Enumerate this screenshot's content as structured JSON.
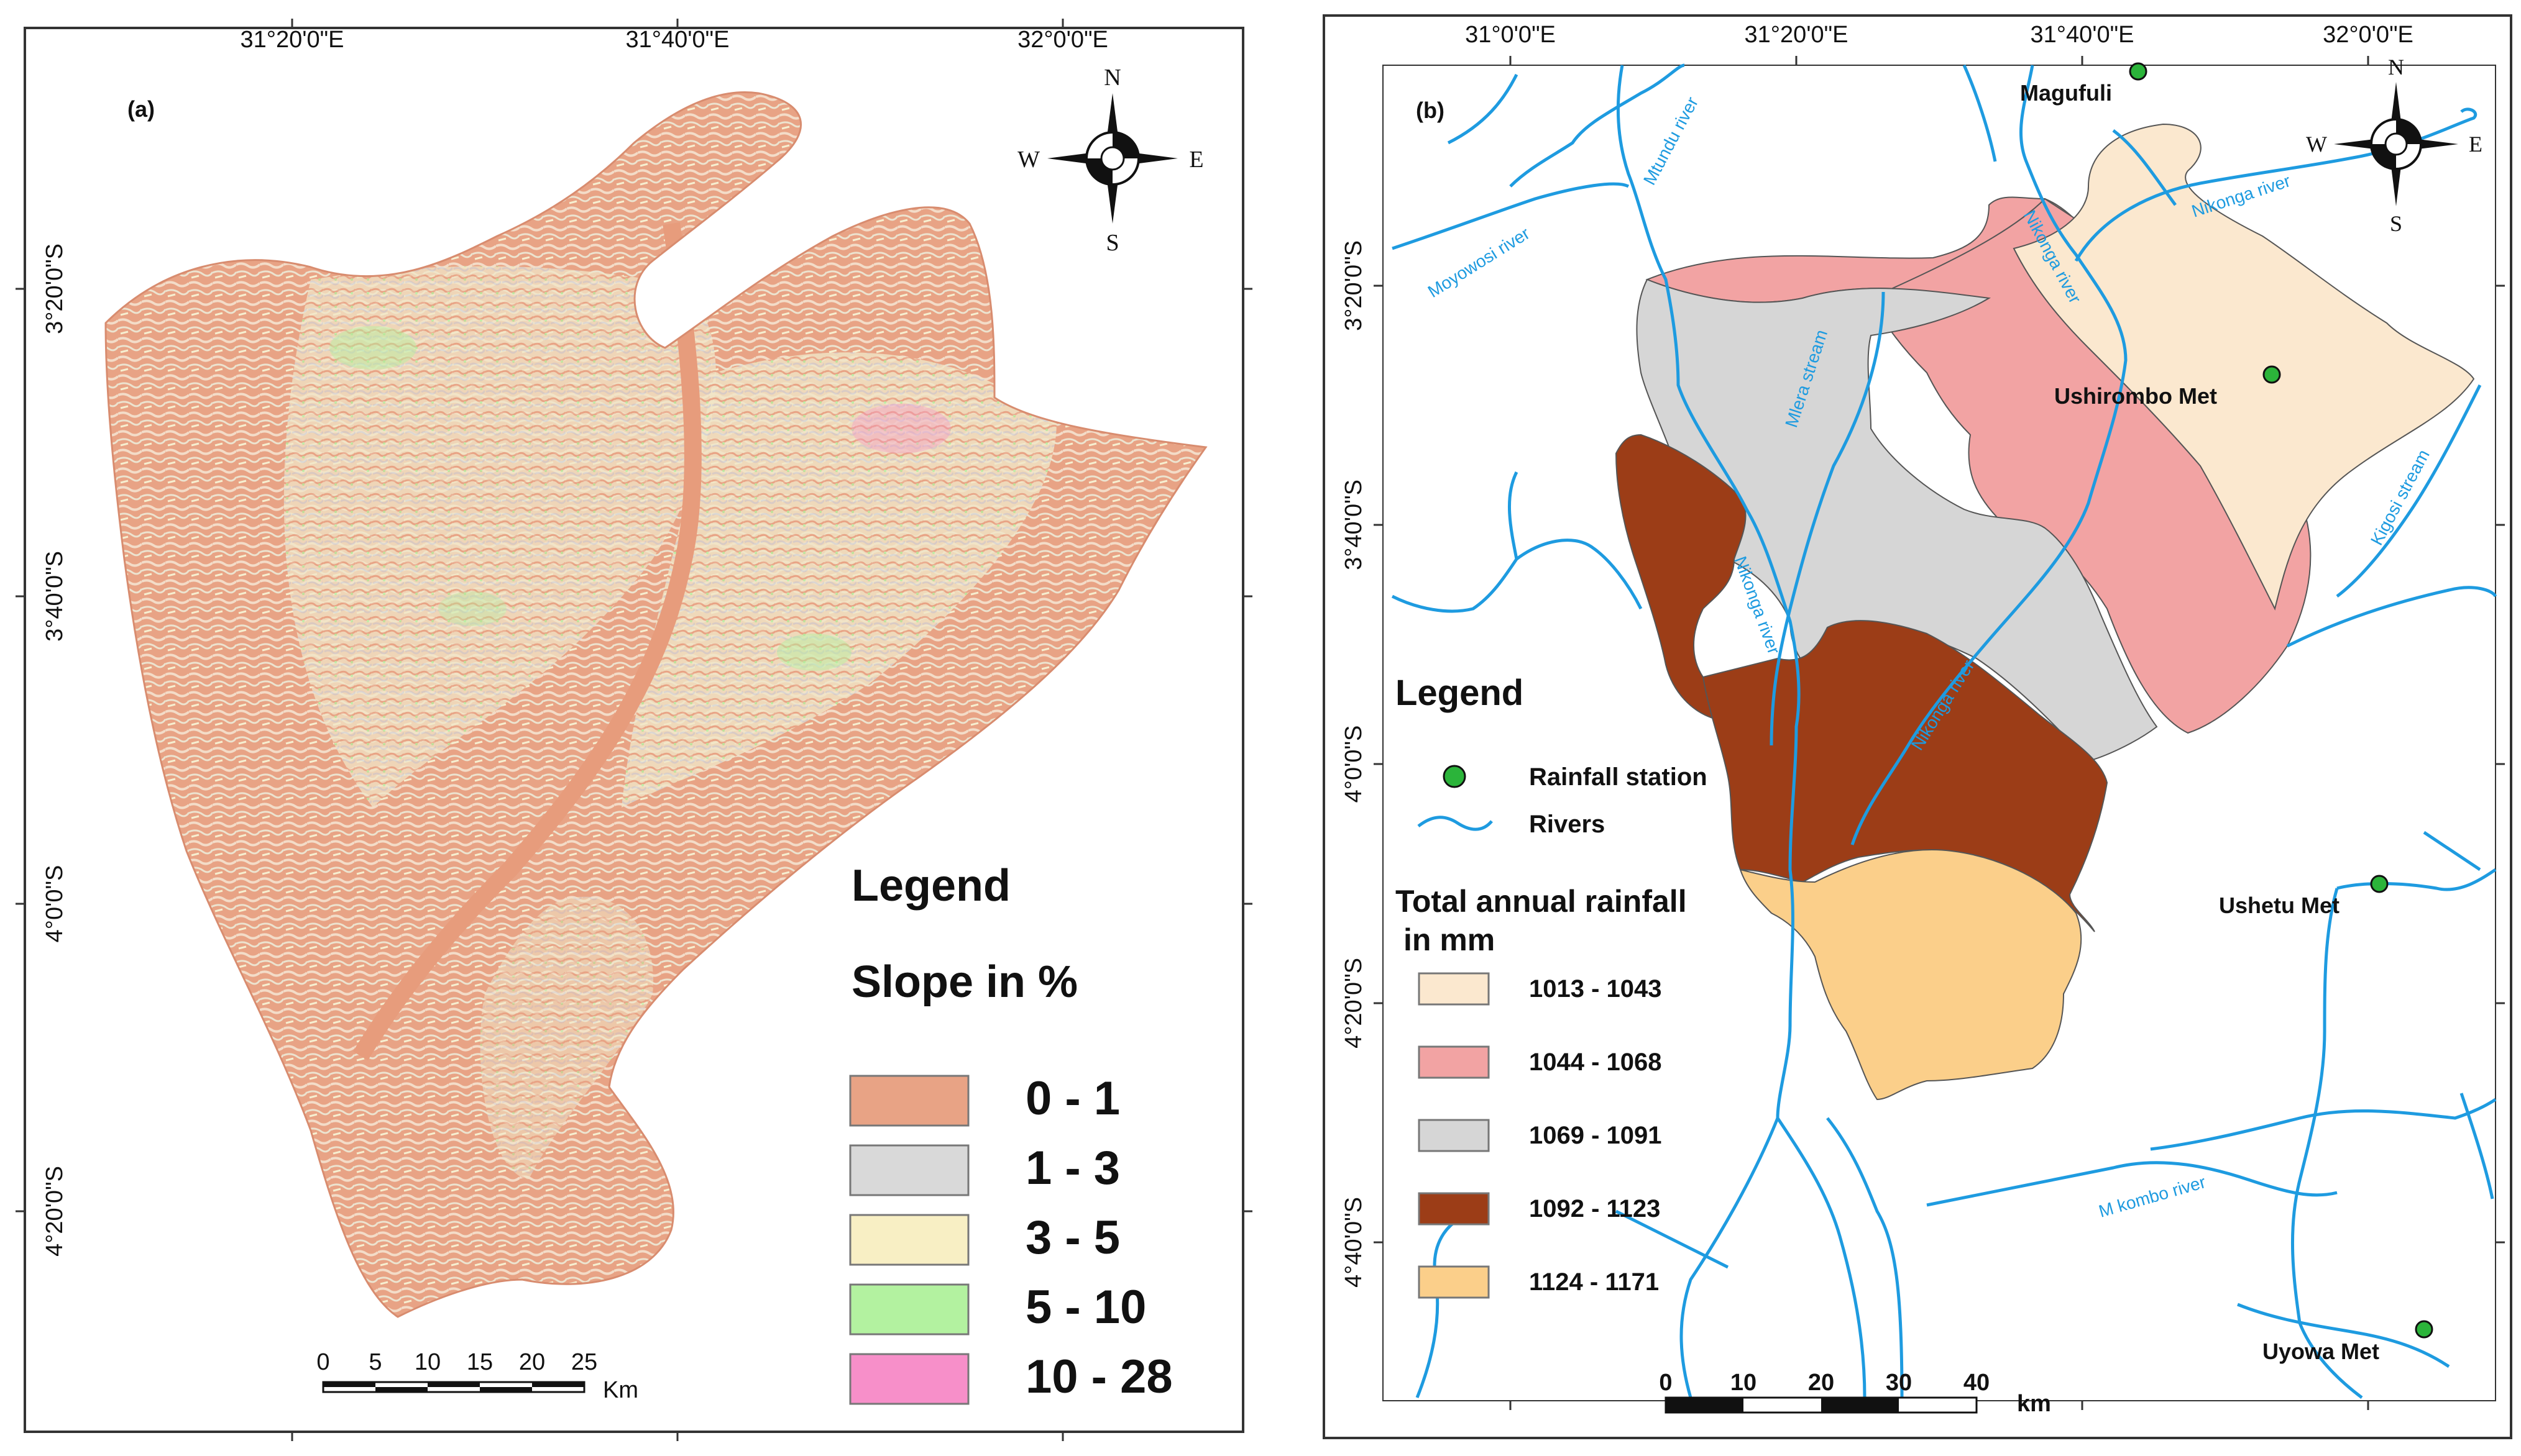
{
  "map_a": {
    "panel_label": "(a)",
    "x_ticks": [
      "31°20'0\"E",
      "31°40'0\"E",
      "32°0'0\"E"
    ],
    "y_ticks": [
      "3°20'0\"S",
      "3°40'0\"S",
      "4°0'0\"S",
      "4°20'0\"S"
    ],
    "compass": {
      "n": "N",
      "s": "S",
      "e": "E",
      "w": "W"
    },
    "legend": {
      "title": "Legend",
      "subtitle": "Slope in %",
      "items": [
        {
          "label": "0 - 1",
          "color": "#e8a385"
        },
        {
          "label": "1 - 3",
          "color": "#d9d9d9"
        },
        {
          "label": "3 - 5",
          "color": "#f8efc4"
        },
        {
          "label": "5 - 10",
          "color": "#b3f2a0"
        },
        {
          "label": "10 - 28",
          "color": "#f78fc9"
        }
      ]
    },
    "scale_bar": {
      "ticks": [
        "0",
        "5",
        "10",
        "15",
        "20",
        "25"
      ],
      "unit": "Km"
    }
  },
  "map_b": {
    "panel_label": "(b)",
    "x_ticks": [
      "31°0'0\"E",
      "31°20'0\"E",
      "31°40'0\"E",
      "32°0'0\"E"
    ],
    "y_ticks": [
      "3°20'0\"S",
      "3°40'0\"S",
      "4°0'0\"S",
      "4°20'0\"S",
      "4°40'0\"S"
    ],
    "compass": {
      "n": "N",
      "s": "S",
      "e": "E",
      "w": "W"
    },
    "stations": [
      "Magufuli",
      "Ushirombo Met",
      "Ushetu Met",
      "Uyowa Met"
    ],
    "rivers": [
      "Mtundu river",
      "Moyowosi river",
      "Mlera stream",
      "Nikonga river",
      "Nikonga river",
      "Nikonga river",
      "Kigosi stream",
      "M kombo river",
      "Nikonga river"
    ],
    "legend": {
      "title": "Legend",
      "station_label": "Rainfall station",
      "river_label": "Rivers",
      "rain_title_1": "Total annual rainfall",
      "rain_title_2": "in mm",
      "items": [
        {
          "label": "1013 - 1043",
          "color": "#fbe8cf"
        },
        {
          "label": "1044 - 1068",
          "color": "#f2a3a3"
        },
        {
          "label": "1069 - 1091",
          "color": "#d6d6d6"
        },
        {
          "label": "1092 - 1123",
          "color": "#9c3d17"
        },
        {
          "label": "1124 - 1171",
          "color": "#fbcf8a"
        }
      ]
    },
    "scale_bar": {
      "ticks": [
        "0",
        "10",
        "20",
        "30",
        "40"
      ],
      "unit": "km"
    },
    "colors": {
      "river": "#1e9be0",
      "station": "#2bb43a"
    }
  }
}
